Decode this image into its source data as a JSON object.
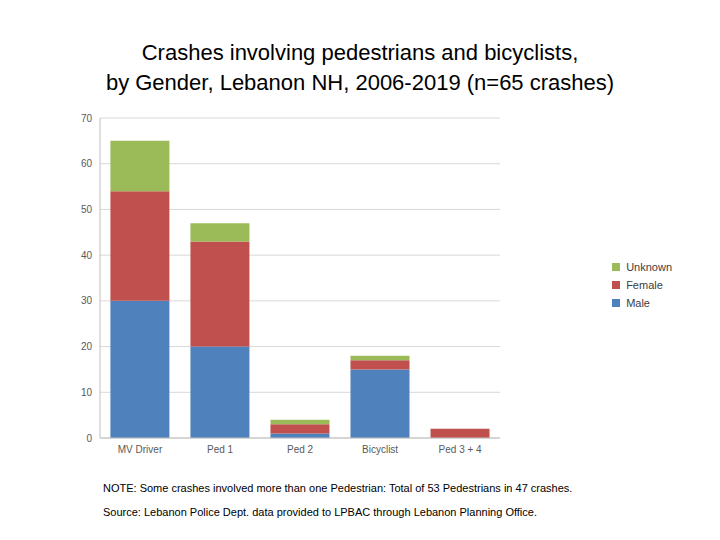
{
  "chart_data": {
    "type": "bar",
    "title": "Crashes involving pedestrians and bicyclists,\nby Gender, Lebanon NH, 2006-2019 (n=65 crashes)",
    "categories": [
      "MV Driver",
      "Ped 1",
      "Ped 2",
      "Bicyclist",
      "Ped 3 + 4"
    ],
    "series": [
      {
        "name": "Male",
        "color": "#4f81bd",
        "values": [
          30,
          20,
          1,
          15,
          0
        ]
      },
      {
        "name": "Female",
        "color": "#c0504d",
        "values": [
          24,
          23,
          2,
          2,
          2
        ]
      },
      {
        "name": "Unknown",
        "color": "#9bbb59",
        "values": [
          11,
          4,
          1,
          1,
          0
        ]
      }
    ],
    "stacked": true,
    "ylim": [
      0,
      70
    ],
    "yticks": [
      0,
      10,
      20,
      30,
      40,
      50,
      60,
      70
    ],
    "grid": true,
    "legend": "right",
    "note": "NOTE:  Some crashes involved more than one Pedestrian: Total of 53 Pedestrians in 47 crashes.",
    "source": "Source: Lebanon Police Dept. data provided to LPBAC through Lebanon Planning Office."
  }
}
